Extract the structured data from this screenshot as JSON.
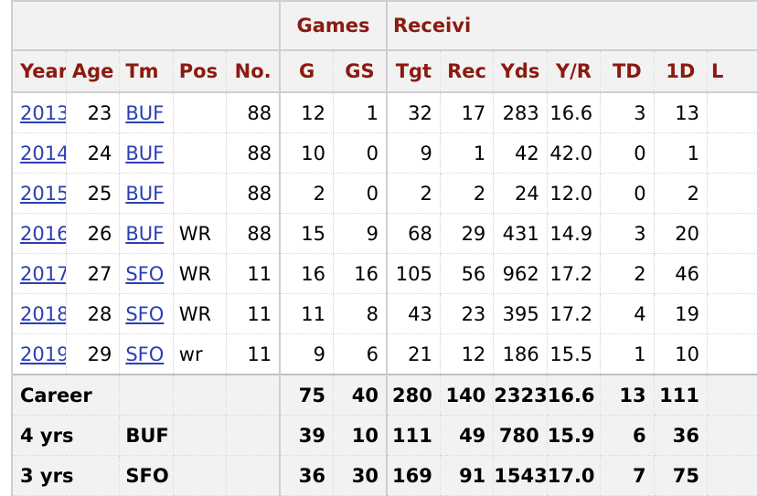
{
  "header_groups": {
    "games": "Games",
    "receiving": "Receivi"
  },
  "columns": [
    "Year",
    "Age",
    "Tm",
    "Pos",
    "No.",
    "G",
    "GS",
    "Tgt",
    "Rec",
    "Yds",
    "Y/R",
    "TD",
    "1D",
    "L"
  ],
  "rows": [
    {
      "year": "2013",
      "age": "23",
      "tm": "BUF",
      "pos": "",
      "no": "88",
      "g": "12",
      "gs": "1",
      "tgt": "32",
      "rec": "17",
      "yds": "283",
      "yr": "16.6",
      "td": "3",
      "fd": "13"
    },
    {
      "year": "2014",
      "age": "24",
      "tm": "BUF",
      "pos": "",
      "no": "88",
      "g": "10",
      "gs": "0",
      "tgt": "9",
      "rec": "1",
      "yds": "42",
      "yr": "42.0",
      "td": "0",
      "fd": "1"
    },
    {
      "year": "2015",
      "age": "25",
      "tm": "BUF",
      "pos": "",
      "no": "88",
      "g": "2",
      "gs": "0",
      "tgt": "2",
      "rec": "2",
      "yds": "24",
      "yr": "12.0",
      "td": "0",
      "fd": "2"
    },
    {
      "year": "2016",
      "age": "26",
      "tm": "BUF",
      "pos": "WR",
      "no": "88",
      "g": "15",
      "gs": "9",
      "tgt": "68",
      "rec": "29",
      "yds": "431",
      "yr": "14.9",
      "td": "3",
      "fd": "20"
    },
    {
      "year": "2017",
      "age": "27",
      "tm": "SFO",
      "pos": "WR",
      "no": "11",
      "g": "16",
      "gs": "16",
      "tgt": "105",
      "rec": "56",
      "yds": "962",
      "yr": "17.2",
      "td": "2",
      "fd": "46"
    },
    {
      "year": "2018",
      "age": "28",
      "tm": "SFO",
      "pos": "WR",
      "no": "11",
      "g": "11",
      "gs": "8",
      "tgt": "43",
      "rec": "23",
      "yds": "395",
      "yr": "17.2",
      "td": "4",
      "fd": "19"
    },
    {
      "year": "2019",
      "age": "29",
      "tm": "SFO",
      "pos": "wr",
      "no": "11",
      "g": "9",
      "gs": "6",
      "tgt": "21",
      "rec": "12",
      "yds": "186",
      "yr": "15.5",
      "td": "1",
      "fd": "10"
    }
  ],
  "totals": [
    {
      "label": "Career",
      "tm": "",
      "g": "75",
      "gs": "40",
      "tgt": "280",
      "rec": "140",
      "yds": "2323",
      "yr": "16.6",
      "td": "13",
      "fd": "111"
    },
    {
      "label": "4 yrs",
      "tm": "BUF",
      "g": "39",
      "gs": "10",
      "tgt": "111",
      "rec": "49",
      "yds": "780",
      "yr": "15.9",
      "td": "6",
      "fd": "36"
    },
    {
      "label": "3 yrs",
      "tm": "SFO",
      "g": "36",
      "gs": "30",
      "tgt": "169",
      "rec": "91",
      "yds": "1543",
      "yr": "17.0",
      "td": "7",
      "fd": "75"
    }
  ],
  "colors": {
    "header_text": "#8b1a10",
    "link": "#2b3fb5",
    "header_bg": "#f2f2f2"
  }
}
